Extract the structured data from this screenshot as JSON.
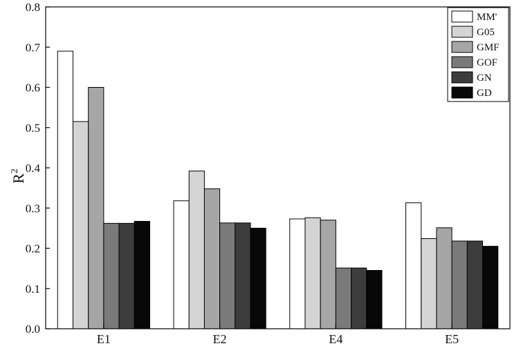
{
  "chart_data": {
    "type": "bar",
    "categories": [
      "E1",
      "E2",
      "E4",
      "E5"
    ],
    "series": [
      {
        "name": "MM'",
        "color": "#ffffff",
        "values": [
          0.69,
          0.318,
          0.273,
          0.313
        ]
      },
      {
        "name": "G05",
        "color": "#d4d4d4",
        "values": [
          0.515,
          0.392,
          0.276,
          0.224
        ]
      },
      {
        "name": "GMF",
        "color": "#a6a6a6",
        "values": [
          0.6,
          0.348,
          0.27,
          0.251
        ]
      },
      {
        "name": "GOF",
        "color": "#7a7a7a",
        "values": [
          0.262,
          0.263,
          0.151,
          0.218
        ]
      },
      {
        "name": "GN",
        "color": "#3d3d3d",
        "values": [
          0.262,
          0.263,
          0.151,
          0.218
        ]
      },
      {
        "name": "GD",
        "color": "#080808",
        "values": [
          0.267,
          0.25,
          0.145,
          0.205
        ]
      }
    ],
    "yticks": [
      "0.0",
      "0.1",
      "0.2",
      "0.3",
      "0.4",
      "0.5",
      "0.6",
      "0.7",
      "0.8"
    ],
    "ylim": [
      0,
      0.8
    ],
    "ylabel": "R",
    "ylabel_sup": "2",
    "xlabel": "",
    "title": "",
    "legend_position": "top-right",
    "grid": false
  }
}
